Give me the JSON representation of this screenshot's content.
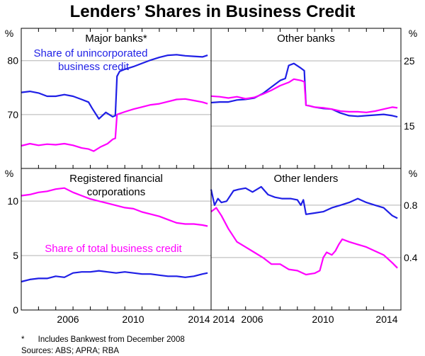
{
  "title": "Lenders’ Shares in Business Credit",
  "colors": {
    "blue": "#1f1fe6",
    "magenta": "#ff00ff",
    "grid": "#b3b3b3",
    "frame": "#000000"
  },
  "x_tick_labels": [
    "2006",
    "2010",
    "2014"
  ],
  "footnotes": [
    "*      Includes Bankwest from December 2008",
    "Sources: ABS; APRA; RBA"
  ],
  "chart_data": [
    {
      "type": "line",
      "panel": "top-left",
      "title": "Major banks*",
      "annotation": [
        "Share of unincorporated",
        "business credit"
      ],
      "ylabel": "%",
      "ylim": [
        60,
        86
      ],
      "yticks": [
        70,
        80
      ],
      "xlim": [
        2003.0,
        2014.0
      ],
      "series": [
        {
          "name": "Share of unincorporated business credit",
          "color": "blue",
          "x": [
            2003.0,
            2003.5,
            2004.0,
            2004.5,
            2005.0,
            2005.5,
            2006.0,
            2006.5,
            2006.9,
            2007.1,
            2007.5,
            2007.9,
            2008.3,
            2008.45,
            2008.55,
            2008.7,
            2009.0,
            2009.5,
            2010.0,
            2010.5,
            2011.0,
            2011.5,
            2012.0,
            2012.5,
            2013.0,
            2013.5,
            2013.8
          ],
          "values": [
            74.1,
            74.3,
            74.0,
            73.4,
            73.4,
            73.7,
            73.4,
            72.8,
            72.3,
            71.2,
            69.2,
            70.4,
            69.6,
            69.8,
            77.1,
            78.0,
            78.4,
            78.9,
            79.5,
            80.1,
            80.6,
            81.0,
            81.1,
            80.9,
            80.8,
            80.7,
            81.0
          ]
        },
        {
          "name": "Share of total business credit",
          "color": "magenta",
          "x": [
            2003.0,
            2003.5,
            2004.0,
            2004.5,
            2005.0,
            2005.5,
            2006.0,
            2006.5,
            2006.9,
            2007.2,
            2007.6,
            2008.0,
            2008.3,
            2008.45,
            2008.55,
            2009.0,
            2009.5,
            2010.0,
            2010.5,
            2011.0,
            2011.5,
            2012.0,
            2012.5,
            2013.0,
            2013.5,
            2013.8
          ],
          "values": [
            64.2,
            64.6,
            64.3,
            64.5,
            64.4,
            64.6,
            64.3,
            63.8,
            63.6,
            63.2,
            64.0,
            64.6,
            65.4,
            65.6,
            70.0,
            70.5,
            71.0,
            71.4,
            71.8,
            72.0,
            72.4,
            72.8,
            72.9,
            72.6,
            72.3,
            72.0
          ]
        }
      ]
    },
    {
      "type": "line",
      "panel": "top-right",
      "title": "Other banks",
      "ylabel": "%",
      "ylim": [
        8.5,
        30
      ],
      "yticks": [
        15,
        25
      ],
      "xlim": [
        2003.0,
        2014.0
      ],
      "series": [
        {
          "name": "Share of unincorporated business credit",
          "color": "blue",
          "x": [
            2003.0,
            2003.5,
            2004.0,
            2004.5,
            2005.0,
            2005.5,
            2006.0,
            2006.5,
            2007.0,
            2007.3,
            2007.5,
            2007.8,
            2008.2,
            2008.4,
            2008.5,
            2008.7,
            2009.0,
            2009.5,
            2010.0,
            2010.5,
            2011.0,
            2011.5,
            2012.0,
            2012.5,
            2013.0,
            2013.5,
            2013.8
          ],
          "values": [
            18.6,
            18.7,
            18.7,
            19.0,
            19.1,
            19.3,
            20.0,
            21.0,
            22.0,
            22.3,
            24.3,
            24.6,
            23.9,
            23.5,
            18.2,
            18.1,
            17.9,
            17.7,
            17.6,
            17.0,
            16.6,
            16.5,
            16.6,
            16.7,
            16.8,
            16.6,
            16.4
          ]
        },
        {
          "name": "Share of total business credit",
          "color": "magenta",
          "x": [
            2003.0,
            2003.5,
            2004.0,
            2004.5,
            2005.0,
            2005.5,
            2006.0,
            2006.5,
            2007.0,
            2007.5,
            2007.8,
            2008.2,
            2008.4,
            2008.5,
            2008.7,
            2009.0,
            2009.5,
            2010.0,
            2010.5,
            2011.0,
            2011.5,
            2012.0,
            2012.5,
            2013.0,
            2013.5,
            2013.8
          ],
          "values": [
            19.6,
            19.5,
            19.3,
            19.5,
            19.2,
            19.4,
            19.9,
            20.5,
            21.2,
            21.7,
            22.2,
            22.0,
            21.8,
            18.2,
            18.1,
            17.9,
            17.8,
            17.6,
            17.3,
            17.2,
            17.2,
            17.1,
            17.3,
            17.6,
            17.9,
            17.8
          ]
        }
      ]
    },
    {
      "type": "line",
      "panel": "bottom-left",
      "title": "Registered financial corporations",
      "title_lines": [
        "Registered financial",
        "corporations"
      ],
      "annotation": [
        "Share of total business credit"
      ],
      "ylabel": "%",
      "ylim": [
        0,
        13
      ],
      "yticks": [
        0,
        5,
        10
      ],
      "xlim": [
        2003.0,
        2014.0
      ],
      "series": [
        {
          "name": "Share of unincorporated business credit",
          "color": "blue",
          "x": [
            2003.0,
            2003.5,
            2004.0,
            2004.5,
            2005.0,
            2005.5,
            2006.0,
            2006.5,
            2007.0,
            2007.5,
            2008.0,
            2008.5,
            2009.0,
            2009.5,
            2010.0,
            2010.5,
            2011.0,
            2011.5,
            2012.0,
            2012.5,
            2013.0,
            2013.5,
            2013.8
          ],
          "values": [
            2.6,
            2.8,
            2.9,
            2.9,
            3.1,
            3.0,
            3.4,
            3.5,
            3.5,
            3.6,
            3.5,
            3.4,
            3.5,
            3.4,
            3.3,
            3.3,
            3.2,
            3.1,
            3.1,
            3.0,
            3.1,
            3.3,
            3.4
          ]
        },
        {
          "name": "Share of total business credit",
          "color": "magenta",
          "x": [
            2003.0,
            2003.5,
            2004.0,
            2004.5,
            2005.0,
            2005.5,
            2006.0,
            2006.5,
            2007.0,
            2007.5,
            2008.0,
            2008.5,
            2009.0,
            2009.5,
            2010.0,
            2010.5,
            2011.0,
            2011.5,
            2012.0,
            2012.5,
            2013.0,
            2013.5,
            2013.8
          ],
          "values": [
            10.5,
            10.6,
            10.8,
            10.9,
            11.1,
            11.2,
            10.8,
            10.5,
            10.2,
            10.0,
            9.8,
            9.6,
            9.4,
            9.3,
            9.0,
            8.8,
            8.6,
            8.3,
            8.0,
            7.9,
            7.9,
            7.8,
            7.7
          ]
        }
      ]
    },
    {
      "type": "line",
      "panel": "bottom-right",
      "title": "Other lenders",
      "ylabel": "%",
      "ylim": [
        0,
        1.08
      ],
      "yticks": [
        0.4,
        0.8
      ],
      "ytick_labels": [
        "0.4",
        "0.8"
      ],
      "xlim": [
        2003.0,
        2014.0
      ],
      "series": [
        {
          "name": "Share of unincorporated business credit",
          "color": "blue",
          "x": [
            2003.0,
            2003.2,
            2003.4,
            2003.6,
            2003.9,
            2004.3,
            2004.6,
            2005.0,
            2005.4,
            2005.9,
            2006.3,
            2006.7,
            2007.1,
            2007.6,
            2008.0,
            2008.2,
            2008.35,
            2008.5,
            2009.0,
            2009.5,
            2010.0,
            2010.5,
            2011.0,
            2011.5,
            2012.0,
            2012.5,
            2013.0,
            2013.5,
            2013.8
          ],
          "values": [
            0.92,
            0.8,
            0.85,
            0.82,
            0.83,
            0.91,
            0.92,
            0.93,
            0.9,
            0.94,
            0.88,
            0.86,
            0.85,
            0.85,
            0.84,
            0.8,
            0.84,
            0.73,
            0.74,
            0.75,
            0.78,
            0.8,
            0.82,
            0.85,
            0.82,
            0.8,
            0.78,
            0.72,
            0.7
          ]
        },
        {
          "name": "Share of total business credit",
          "color": "magenta",
          "x": [
            2003.0,
            2003.3,
            2003.6,
            2004.0,
            2004.5,
            2005.0,
            2005.5,
            2006.0,
            2006.5,
            2007.0,
            2007.5,
            2008.0,
            2008.5,
            2009.0,
            2009.3,
            2009.5,
            2009.7,
            2010.0,
            2010.2,
            2010.4,
            2010.6,
            2011.0,
            2011.5,
            2012.0,
            2012.5,
            2013.0,
            2013.5,
            2013.8
          ],
          "values": [
            0.75,
            0.78,
            0.72,
            0.62,
            0.52,
            0.48,
            0.44,
            0.4,
            0.35,
            0.35,
            0.31,
            0.3,
            0.27,
            0.28,
            0.3,
            0.4,
            0.44,
            0.42,
            0.45,
            0.5,
            0.54,
            0.52,
            0.5,
            0.48,
            0.45,
            0.42,
            0.36,
            0.32
          ]
        }
      ]
    }
  ]
}
